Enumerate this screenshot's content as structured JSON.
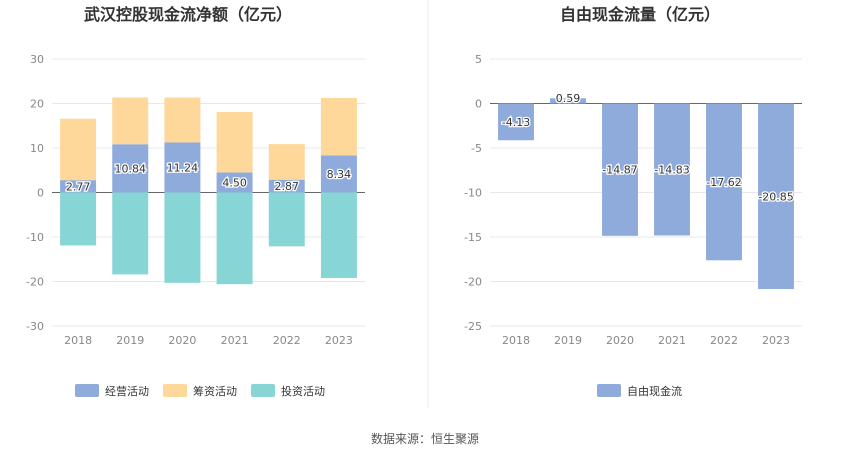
{
  "chart_data": [
    {
      "type": "bar",
      "stacked": true,
      "title": "武汉控股现金流净额（亿元）",
      "categories": [
        "2018",
        "2019",
        "2020",
        "2021",
        "2022",
        "2023"
      ],
      "ylim": [
        -30,
        30
      ],
      "yticks": [
        "30",
        "20",
        "10",
        "0",
        "-10",
        "-20",
        "-30"
      ],
      "grid": true,
      "legend_position": "bottom",
      "series": [
        {
          "name": "经营活动",
          "color": "#8eabdc",
          "values": [
            2.77,
            10.84,
            11.24,
            4.5,
            2.87,
            8.34
          ],
          "labels": [
            "2.77",
            "10.84",
            "11.24",
            "4.50",
            "2.87",
            "8.34"
          ]
        },
        {
          "name": "筹资活动",
          "color": "#fdd89a",
          "values": [
            13.8,
            10.5,
            10.1,
            13.6,
            8.0,
            12.9
          ]
        },
        {
          "name": "投资活动",
          "color": "#88d5d6",
          "values": [
            -11.9,
            -18.4,
            -20.3,
            -20.6,
            -12.1,
            -19.2
          ]
        }
      ]
    },
    {
      "type": "bar",
      "title": "自由现金流量（亿元）",
      "categories": [
        "2018",
        "2019",
        "2020",
        "2021",
        "2022",
        "2023"
      ],
      "ylim": [
        -25,
        5
      ],
      "yticks": [
        "5",
        "0",
        "-5",
        "-10",
        "-15",
        "-20",
        "-25"
      ],
      "grid": true,
      "legend_position": "bottom",
      "series": [
        {
          "name": "自由现金流",
          "color": "#8eabdc",
          "values": [
            -4.13,
            0.59,
            -14.87,
            -14.83,
            -17.62,
            -20.85
          ],
          "labels": [
            "-4.13",
            "0.59",
            "-14.87",
            "-14.83",
            "-17.62",
            "-20.85"
          ]
        }
      ]
    }
  ],
  "footer": {
    "source": "数据来源：恒生聚源"
  }
}
